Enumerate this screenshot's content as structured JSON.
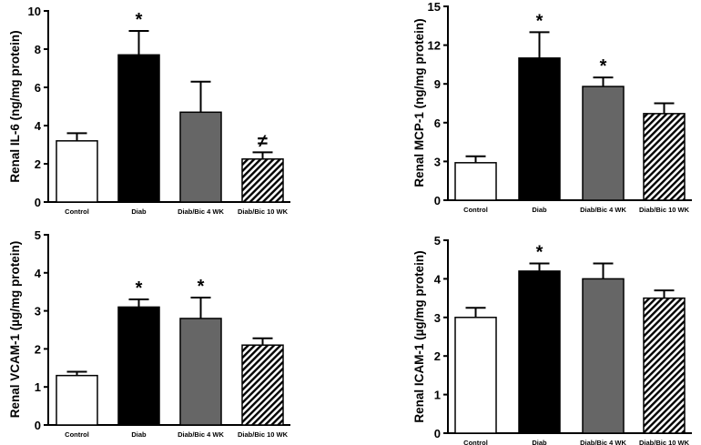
{
  "colors": {
    "control": "#ffffff",
    "diab": "#000000",
    "diab_bic_4wk": "#666666",
    "diab_bic_10wk": "hatched-black-white"
  },
  "chart_data": [
    {
      "type": "bar",
      "title": "",
      "xlabel": "",
      "ylabel": "Renal IL-6 (ng/mg protein)",
      "ylim": [
        0,
        10
      ],
      "yticks": [
        "0",
        "2",
        "4",
        "6",
        "8",
        "10"
      ],
      "grid": false,
      "legend": "none",
      "categories": [
        "Control",
        "Diab",
        "Diab/Bic 4 WK",
        "Diab/Bic 10 WK"
      ],
      "values": [
        3.2,
        7.7,
        4.7,
        2.25
      ],
      "errors": [
        0.4,
        1.25,
        1.6,
        0.35
      ],
      "annotations": [
        "",
        "*",
        "",
        "≠"
      ]
    },
    {
      "type": "bar",
      "title": "",
      "xlabel": "",
      "ylabel": "Renal MCP-1 (ng/mg protein)",
      "ylim": [
        0,
        15
      ],
      "yticks": [
        "0",
        "3",
        "6",
        "9",
        "12",
        "15"
      ],
      "grid": false,
      "legend": "none",
      "categories": [
        "Control",
        "Diab",
        "Diab/Bic 4 WK",
        "Diab/Bic 10 WK"
      ],
      "values": [
        2.9,
        11.0,
        8.8,
        6.7
      ],
      "errors": [
        0.5,
        2.0,
        0.7,
        0.8
      ],
      "annotations": [
        "",
        "*",
        "*",
        ""
      ]
    },
    {
      "type": "bar",
      "title": "",
      "xlabel": "",
      "ylabel": "Renal VCAM-1 (µg/mg protein)",
      "ylim": [
        0,
        5
      ],
      "yticks": [
        "0",
        "1",
        "2",
        "3",
        "4",
        "5"
      ],
      "grid": false,
      "legend": "none",
      "categories": [
        "Control",
        "Diab",
        "Diab/Bic 4 WK",
        "Diab/Bic 10 WK"
      ],
      "values": [
        1.3,
        3.1,
        2.8,
        2.1
      ],
      "errors": [
        0.1,
        0.2,
        0.55,
        0.18
      ],
      "annotations": [
        "",
        "*",
        "*",
        ""
      ]
    },
    {
      "type": "bar",
      "title": "",
      "xlabel": "",
      "ylabel": "Renal ICAM-1 (µg/mg protein)",
      "ylim": [
        0,
        5
      ],
      "yticks": [
        "0",
        "1",
        "2",
        "3",
        "4",
        "5"
      ],
      "grid": false,
      "legend": "none",
      "categories": [
        "Control",
        "Diab",
        "Diab/Bic 4 WK",
        "Diab/Bic 10 WK"
      ],
      "values": [
        3.0,
        4.2,
        4.0,
        3.5
      ],
      "errors": [
        0.25,
        0.2,
        0.4,
        0.2
      ],
      "annotations": [
        "",
        "*",
        "",
        ""
      ]
    }
  ]
}
